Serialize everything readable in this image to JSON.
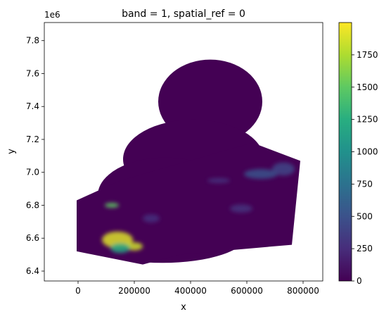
{
  "chart_data": {
    "type": "heatmap",
    "title": "band = 1, spatial_ref = 0",
    "xlabel": "x",
    "ylabel": "y",
    "xlim": [
      -120000,
      870000
    ],
    "ylim": [
      6340000,
      7910000
    ],
    "x_ticks": [
      0,
      200000,
      400000,
      600000,
      800000
    ],
    "x_tick_labels": [
      "0",
      "200000",
      "400000",
      "600000",
      "800000"
    ],
    "y_ticks": [
      6400000,
      6600000,
      6800000,
      7000000,
      7200000,
      7400000,
      7600000,
      7800000
    ],
    "y_tick_labels": [
      "6.4",
      "6.6",
      "6.8",
      "7.0",
      "7.2",
      "7.4",
      "7.6",
      "7.8"
    ],
    "y_offset_label": "1e6",
    "colorbar": {
      "colormap": "viridis",
      "vmin": 0,
      "vmax": 2000,
      "ticks": [
        0,
        250,
        500,
        750,
        1000,
        1250,
        1500,
        1750
      ],
      "tick_labels": [
        "0",
        "250",
        "500",
        "750",
        "1000",
        "1250",
        "1500",
        "1750"
      ]
    },
    "background_value": 0,
    "hotspots": [
      {
        "x": 140000,
        "y": 6590000,
        "rx": 55000,
        "ry": 50000,
        "value": 1900
      },
      {
        "x": 200000,
        "y": 6550000,
        "rx": 30000,
        "ry": 25000,
        "value": 1850
      },
      {
        "x": 120000,
        "y": 6800000,
        "rx": 25000,
        "ry": 15000,
        "value": 1500
      },
      {
        "x": 150000,
        "y": 6540000,
        "rx": 35000,
        "ry": 30000,
        "value": 1200
      },
      {
        "x": 650000,
        "y": 6990000,
        "rx": 60000,
        "ry": 30000,
        "value": 500
      },
      {
        "x": 730000,
        "y": 7020000,
        "rx": 40000,
        "ry": 40000,
        "value": 420
      },
      {
        "x": 500000,
        "y": 6950000,
        "rx": 40000,
        "ry": 15000,
        "value": 300
      },
      {
        "x": 580000,
        "y": 6780000,
        "rx": 40000,
        "ry": 25000,
        "value": 280
      },
      {
        "x": 260000,
        "y": 6720000,
        "rx": 30000,
        "ry": 25000,
        "value": 260
      }
    ],
    "colors": {
      "low": "#440154",
      "high": "#fde725",
      "axis": "#000000"
    }
  }
}
